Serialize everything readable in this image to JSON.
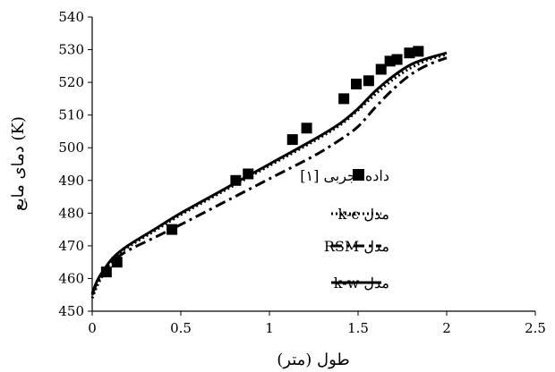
{
  "chart_data": {
    "type": "line",
    "title": "",
    "xlabel": "طول (متر)",
    "ylabel": "دمای مایع (K)",
    "xlim": [
      0,
      2.5
    ],
    "ylim": [
      450,
      540
    ],
    "xticks": [
      0,
      0.5,
      1,
      1.5,
      2,
      2.5
    ],
    "xtick_labels": [
      "0",
      "0.5",
      "1",
      "1.5",
      "2",
      "2.5"
    ],
    "yticks": [
      450,
      460,
      470,
      480,
      490,
      500,
      510,
      520,
      530,
      540
    ],
    "ytick_labels": [
      "450",
      "460",
      "470",
      "480",
      "490",
      "500",
      "510",
      "520",
      "530",
      "540"
    ],
    "grid": false,
    "legend_position": "right-middle",
    "series": [
      {
        "name": "داده تجربی [۱]",
        "kind": "markers",
        "marker": "square",
        "color": "#000000",
        "x": [
          0.08,
          0.14,
          0.45,
          0.81,
          0.88,
          1.13,
          1.21,
          1.42,
          1.49,
          1.56,
          1.63,
          1.68,
          1.72,
          1.79,
          1.84
        ],
        "y": [
          462,
          465,
          475,
          490,
          492,
          502.5,
          506,
          515,
          519.5,
          520.5,
          524,
          526.5,
          527,
          529,
          529.5
        ]
      },
      {
        "name": "مدل k-ϵ",
        "kind": "line",
        "dash": "dotted",
        "color": "#000000",
        "x": [
          0,
          0.03,
          0.07,
          0.12,
          0.2,
          0.35,
          0.5,
          0.75,
          1.0,
          1.25,
          1.4,
          1.5,
          1.6,
          1.7,
          1.8,
          1.9,
          2.0
        ],
        "y": [
          454,
          458,
          462,
          466,
          469.5,
          474.5,
          479.5,
          487,
          494.5,
          502,
          507,
          511.5,
          516.5,
          521,
          524.5,
          527,
          528.5
        ]
      },
      {
        "name": "مدل RSM",
        "kind": "line",
        "dash": "dash-dot",
        "color": "#000000",
        "x": [
          0,
          0.03,
          0.07,
          0.12,
          0.2,
          0.35,
          0.5,
          0.75,
          1.0,
          1.25,
          1.4,
          1.5,
          1.6,
          1.7,
          1.8,
          1.9,
          2.0
        ],
        "y": [
          455,
          459,
          462.5,
          465.5,
          468.5,
          472.5,
          476.5,
          483.5,
          490.5,
          497.5,
          502.5,
          506.5,
          512.5,
          518,
          522.5,
          525.5,
          527.5
        ]
      },
      {
        "name": "مدل k-w",
        "kind": "line",
        "dash": "solid",
        "color": "#000000",
        "x": [
          0,
          0.03,
          0.07,
          0.12,
          0.2,
          0.35,
          0.5,
          0.75,
          1.0,
          1.25,
          1.4,
          1.5,
          1.6,
          1.7,
          1.8,
          1.9,
          2.0
        ],
        "y": [
          455.5,
          459.5,
          463,
          466.5,
          470,
          475,
          480,
          487.5,
          495,
          502.5,
          507.5,
          512,
          517.5,
          522,
          525.5,
          527.5,
          529
        ]
      }
    ]
  }
}
